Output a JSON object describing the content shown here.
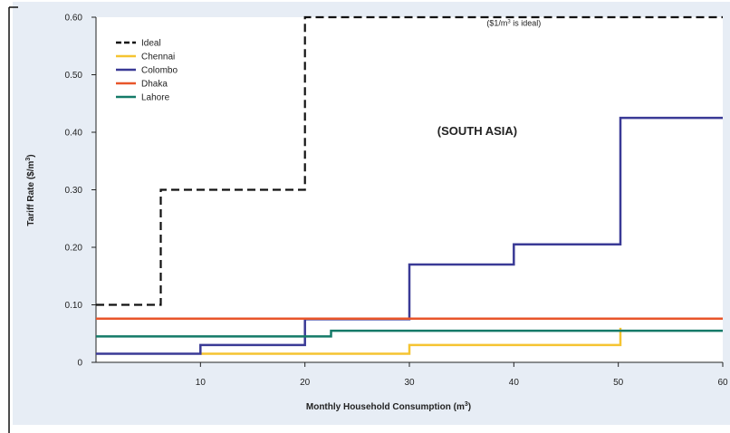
{
  "chart_data": {
    "type": "line",
    "step": true,
    "xlabel": "Monthly Household Consumption (m",
    "xlabel_sup": "3",
    "xlabel_end": ")",
    "ylabel": "Tariff Rate ($/m",
    "ylabel_sup": "3",
    "ylabel_end": ")",
    "xlim": [
      0,
      60
    ],
    "ylim": [
      0,
      0.6
    ],
    "x_ticks": [
      {
        "value": 10,
        "label": "10"
      },
      {
        "value": 20,
        "label": "20"
      },
      {
        "value": 30,
        "label": "30"
      },
      {
        "value": 40,
        "label": "40"
      },
      {
        "value": 50,
        "label": "50"
      },
      {
        "value": 60,
        "label": "60"
      }
    ],
    "y_ticks": [
      {
        "value": 0,
        "label": "0"
      },
      {
        "value": 0.1,
        "label": "0.10"
      },
      {
        "value": 0.2,
        "label": "0.20"
      },
      {
        "value": 0.3,
        "label": "0.30"
      },
      {
        "value": 0.4,
        "label": "0.40"
      },
      {
        "value": 0.5,
        "label": "0.50"
      },
      {
        "value": 0.6,
        "label": "0.60"
      }
    ],
    "grid": false,
    "legend_position": "top-left",
    "annotations": [
      {
        "id": "ideal-note",
        "pre": "($1/m",
        "sup": "3",
        "post": " is ideal)",
        "x": 40,
        "y": 0.585
      },
      {
        "id": "region-label",
        "text": "(SOUTH ASIA)",
        "x": 36.5,
        "y": 0.395
      }
    ],
    "series": [
      {
        "name": "Ideal",
        "color": "#111111",
        "dashed": true,
        "points": [
          [
            0,
            0.1
          ],
          [
            6.2,
            0.1
          ],
          [
            6.2,
            0.3
          ],
          [
            20,
            0.3
          ],
          [
            20,
            0.6
          ],
          [
            60,
            0.6
          ]
        ]
      },
      {
        "name": "Chennai",
        "color": "#f5c431",
        "dashed": false,
        "points": [
          [
            10,
            0.015
          ],
          [
            30,
            0.015
          ],
          [
            30,
            0.03
          ],
          [
            50.2,
            0.03
          ],
          [
            50.2,
            0.06
          ]
        ]
      },
      {
        "name": "Colombo",
        "color": "#3a3a96",
        "dashed": false,
        "points": [
          [
            0,
            0.015
          ],
          [
            10,
            0.015
          ],
          [
            10,
            0.03
          ],
          [
            20,
            0.03
          ],
          [
            20,
            0.075
          ],
          [
            30,
            0.075
          ],
          [
            30,
            0.17
          ],
          [
            40,
            0.17
          ],
          [
            40,
            0.205
          ],
          [
            50.2,
            0.205
          ],
          [
            50.2,
            0.425
          ],
          [
            60,
            0.425
          ]
        ]
      },
      {
        "name": "Dhaka",
        "color": "#e8552a",
        "dashed": false,
        "points": [
          [
            0,
            0.076
          ],
          [
            60,
            0.076
          ]
        ]
      },
      {
        "name": "Lahore",
        "color": "#147a68",
        "dashed": false,
        "points": [
          [
            0,
            0.045
          ],
          [
            22.5,
            0.045
          ],
          [
            22.5,
            0.055
          ],
          [
            60,
            0.055
          ]
        ]
      }
    ]
  }
}
